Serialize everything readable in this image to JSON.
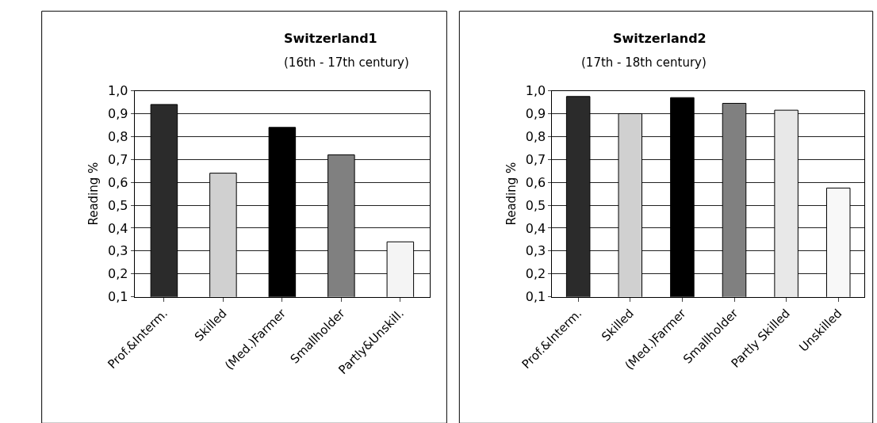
{
  "chart_data": [
    {
      "type": "bar",
      "title": "Switzerland1",
      "subtitle": "(16th - 17th century)",
      "ylabel": "Reading %",
      "categories": [
        "Prof.&Interm.",
        "Skilled",
        "(Med.)Farmer",
        "Smallholder",
        "Partly&Unskill."
      ],
      "values": [
        0.94,
        0.64,
        0.84,
        0.72,
        0.34
      ],
      "colors": [
        "#2b2b2b",
        "#d0d0d0",
        "#000000",
        "#808080",
        "#f4f4f4"
      ],
      "ylim": [
        0.1,
        1.0
      ],
      "yticks": [
        {
          "value": 0.1,
          "label": "0,1"
        },
        {
          "value": 0.2,
          "label": "0,2"
        },
        {
          "value": 0.3,
          "label": "0,3"
        },
        {
          "value": 0.4,
          "label": "0,4"
        },
        {
          "value": 0.5,
          "label": "0,5"
        },
        {
          "value": 0.6,
          "label": "0,6"
        },
        {
          "value": 0.7,
          "label": "0,7"
        },
        {
          "value": 0.8,
          "label": "0,8"
        },
        {
          "value": 0.9,
          "label": "0,9"
        },
        {
          "value": 1.0,
          "label": "1,0"
        }
      ],
      "grid": "y",
      "legend": false
    },
    {
      "type": "bar",
      "title": "Switzerland2",
      "subtitle": "(17th - 18th century)",
      "ylabel": "Reading %",
      "categories": [
        "Prof.&Interm.",
        "Skilled",
        "(Med.)Farmer",
        "Smallholder",
        "Partly Skilled",
        "Unskilled"
      ],
      "values": [
        0.975,
        0.9,
        0.97,
        0.945,
        0.915,
        0.575
      ],
      "colors": [
        "#2b2b2b",
        "#d0d0d0",
        "#000000",
        "#808080",
        "#e8e8e8",
        "#f8f8f8"
      ],
      "ylim": [
        0.1,
        1.0
      ],
      "yticks": [
        {
          "value": 0.1,
          "label": "0,1"
        },
        {
          "value": 0.2,
          "label": "0,2"
        },
        {
          "value": 0.3,
          "label": "0,3"
        },
        {
          "value": 0.4,
          "label": "0,4"
        },
        {
          "value": 0.5,
          "label": "0,5"
        },
        {
          "value": 0.6,
          "label": "0,6"
        },
        {
          "value": 0.7,
          "label": "0,7"
        },
        {
          "value": 0.8,
          "label": "0,8"
        },
        {
          "value": 0.9,
          "label": "0,9"
        },
        {
          "value": 1.0,
          "label": "1,0"
        }
      ],
      "grid": "y",
      "legend": false
    }
  ]
}
